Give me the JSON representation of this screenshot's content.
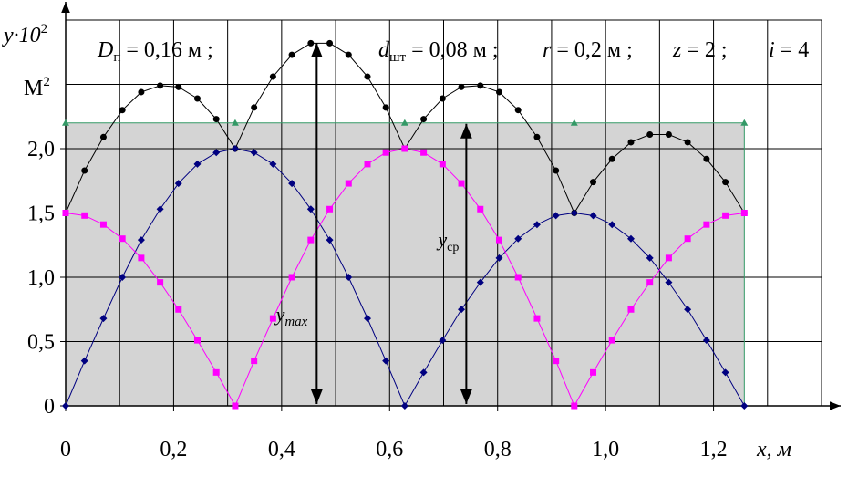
{
  "chart_data": {
    "type": "line",
    "params": [
      {
        "symbol": "D",
        "sub": "п",
        "text": " = 0,16 м ;"
      },
      {
        "symbol": "d",
        "sub": "шт",
        "text": " = 0,08 м ;"
      },
      {
        "symbol": "r",
        "text": " = 0,2 м ;"
      },
      {
        "symbol": "z",
        "text": " = 2 ;"
      },
      {
        "symbol": "i",
        "text": " = 4"
      }
    ],
    "y_label": {
      "text": "y·10",
      "sup": "2"
    },
    "y_units": {
      "text": "М",
      "sup": "2"
    },
    "x_label": "x, м",
    "xlim": [
      0,
      1.4
    ],
    "ylim": [
      0,
      3.0
    ],
    "xticks": [
      0,
      {
        "value": 0.2,
        "label": "0,2"
      },
      {
        "value": 0.4,
        "label": "0,4"
      },
      {
        "value": 0.6,
        "label": "0,6"
      },
      {
        "value": 0.8,
        "label": "0,8"
      },
      {
        "value": 1.0,
        "label": "1,0"
      },
      {
        "value": 1.2,
        "label": "1,2"
      }
    ],
    "yticks": [
      0,
      {
        "value": 0.5,
        "label": "0,5"
      },
      {
        "value": 1.0,
        "label": "1,0"
      },
      {
        "value": 1.5,
        "label": "1,5"
      },
      {
        "value": 2.0,
        "label": "2,0"
      }
    ],
    "xgrid": [
      0.1,
      0.2,
      0.3,
      0.4,
      0.5,
      0.6,
      0.7,
      0.8,
      0.9,
      1.0,
      1.1,
      1.2,
      1.3,
      1.4
    ],
    "ygrid": [
      0.5,
      1.0,
      1.5,
      2.0,
      2.5,
      3.0
    ],
    "x": [
      0,
      0.035,
      0.07,
      0.105,
      0.14,
      0.175,
      0.209,
      0.244,
      0.279,
      0.314,
      0.349,
      0.384,
      0.419,
      0.454,
      0.489,
      0.524,
      0.559,
      0.593,
      0.628,
      0.663,
      0.698,
      0.733,
      0.768,
      0.803,
      0.838,
      0.873,
      0.908,
      0.942,
      0.977,
      1.012,
      1.047,
      1.082,
      1.117,
      1.152,
      1.187,
      1.222,
      1.257
    ],
    "mean": {
      "color": "#339966",
      "fill": "#d4d4d4",
      "x": [
        0,
        0.314,
        0.628,
        0.942,
        1.257
      ],
      "values": [
        2.2,
        2.2,
        2.2,
        2.2,
        2.2
      ]
    },
    "series": [
      {
        "color": "#000000",
        "marker": "circle",
        "values": [
          1.5,
          1.83,
          2.09,
          2.3,
          2.44,
          2.49,
          2.48,
          2.39,
          2.23,
          2.0,
          2.32,
          2.56,
          2.73,
          2.82,
          2.82,
          2.73,
          2.56,
          2.32,
          2.0,
          2.23,
          2.39,
          2.48,
          2.49,
          2.44,
          2.3,
          2.09,
          1.83,
          1.5,
          1.74,
          1.92,
          2.05,
          2.11,
          2.11,
          2.05,
          1.92,
          1.74,
          1.5
        ]
      },
      {
        "color": "#000080",
        "marker": "diamond",
        "values": [
          0,
          0.35,
          0.68,
          1.0,
          1.29,
          1.53,
          1.73,
          1.88,
          1.97,
          2.0,
          1.97,
          1.88,
          1.73,
          1.53,
          1.29,
          1.0,
          0.68,
          0.35,
          0,
          0.26,
          0.51,
          0.75,
          0.96,
          1.15,
          1.3,
          1.41,
          1.48,
          1.5,
          1.48,
          1.41,
          1.3,
          1.15,
          0.96,
          0.75,
          0.51,
          0.26,
          0
        ]
      },
      {
        "color": "#ff00ff",
        "marker": "square",
        "values": [
          1.5,
          1.48,
          1.41,
          1.3,
          1.15,
          0.96,
          0.75,
          0.51,
          0.26,
          0,
          0.35,
          0.68,
          1.0,
          1.29,
          1.53,
          1.73,
          1.88,
          1.97,
          2.0,
          1.97,
          1.88,
          1.73,
          1.53,
          1.29,
          1.0,
          0.68,
          0.35,
          0,
          0.26,
          0.51,
          0.75,
          0.96,
          1.15,
          1.3,
          1.41,
          1.48,
          1.5
        ]
      }
    ],
    "arrows": [
      {
        "label": "y",
        "sub": "max",
        "x": 0.465,
        "value": 2.83
      },
      {
        "label": "y",
        "sub": "ср",
        "x": 0.742,
        "value": 2.2
      }
    ]
  }
}
